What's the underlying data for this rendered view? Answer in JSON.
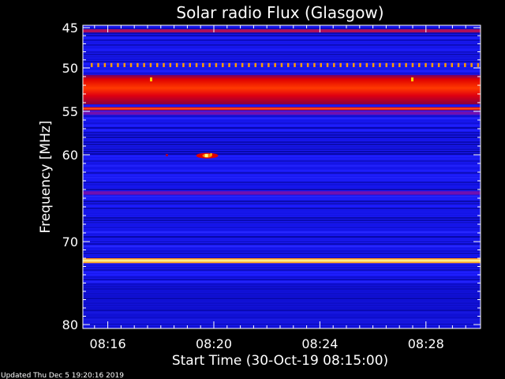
{
  "chart_data": {
    "type": "heatmap",
    "title": "Solar radio Flux (Glasgow)",
    "xlabel": "Start Time (30-Oct-19 08:15:00)",
    "ylabel": "Frequency [MHz]",
    "xlim": [
      "08:15:00",
      "08:30:00"
    ],
    "ylim": [
      45,
      80
    ],
    "x_ticks": [
      "08:16",
      "08:20",
      "08:24",
      "08:28"
    ],
    "x_tick_minutes": [
      16,
      20,
      24,
      28
    ],
    "y_ticks": [
      45,
      50,
      55,
      60,
      70,
      80
    ],
    "colormap": [
      "#00008c",
      "#1a1aff",
      "#6a00b0",
      "#e00000",
      "#ff6a00",
      "#ffd000",
      "#ffffa0"
    ],
    "background_color": "#1a1af0",
    "bands": [
      {
        "mhz_from": 45.2,
        "mhz_to": 45.6,
        "level": "red-purple"
      },
      {
        "mhz_from": 49.4,
        "mhz_to": 49.8,
        "level": "orange-dotted"
      },
      {
        "mhz_from": 50.8,
        "mhz_to": 54.2,
        "level": "red"
      },
      {
        "mhz_from": 54.5,
        "mhz_to": 54.9,
        "level": "red"
      },
      {
        "mhz_from": 55.0,
        "mhz_to": 55.4,
        "level": "purple"
      },
      {
        "mhz_from": 64.2,
        "mhz_to": 64.6,
        "level": "purple"
      },
      {
        "mhz_from": 72.0,
        "mhz_to": 72.6,
        "level": "yellow"
      }
    ],
    "burst": {
      "time": "08:19:45",
      "mhz": 60.1,
      "level": "yellow"
    }
  },
  "footer_text": "Updated Thu Dec  5 19:20:16 2019"
}
